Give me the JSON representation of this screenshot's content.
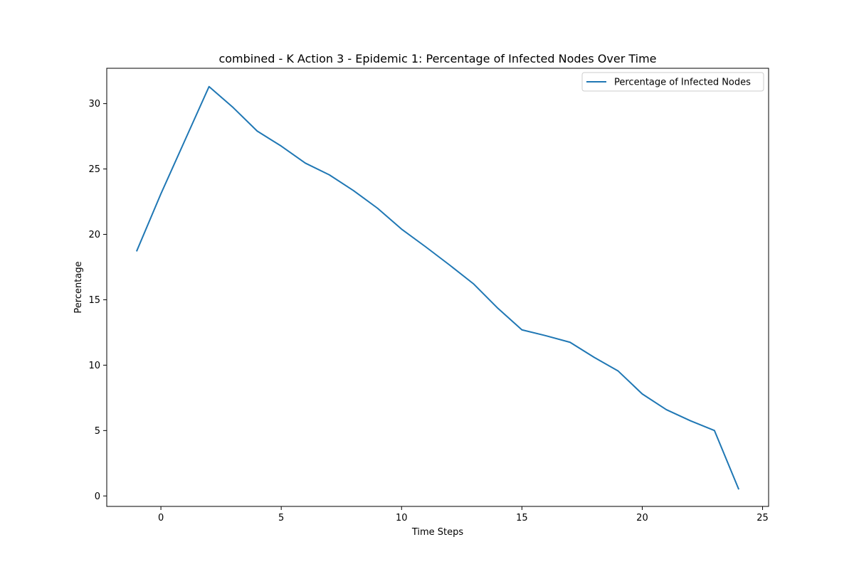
{
  "chart_data": {
    "type": "line",
    "title": "combined - K Action 3 - Epidemic 1: Percentage of Infected Nodes Over Time",
    "xlabel": "Time Steps",
    "ylabel": "Percentage",
    "xlim": [
      -2.25,
      25.25
    ],
    "ylim": [
      -0.8,
      32.7
    ],
    "xticks": [
      0,
      5,
      10,
      15,
      20,
      25
    ],
    "yticks": [
      0,
      5,
      10,
      15,
      20,
      25,
      30
    ],
    "grid": false,
    "legend_position": "top-right",
    "series": [
      {
        "name": "Percentage of Infected Nodes",
        "color": "#1f77b4",
        "x": [
          -1,
          0,
          1,
          2,
          3,
          4,
          5,
          6,
          7,
          8,
          9,
          10,
          11,
          12,
          13,
          14,
          15,
          16,
          17,
          18,
          19,
          20,
          21,
          22,
          23,
          24
        ],
        "y": [
          18.75,
          23.1,
          27.2,
          31.3,
          29.7,
          27.9,
          26.75,
          25.45,
          24.55,
          23.35,
          22.0,
          20.4,
          19.05,
          17.65,
          16.2,
          14.35,
          12.7,
          12.25,
          11.75,
          10.6,
          9.55,
          7.8,
          6.6,
          5.75,
          5.0,
          0.55
        ]
      }
    ]
  }
}
